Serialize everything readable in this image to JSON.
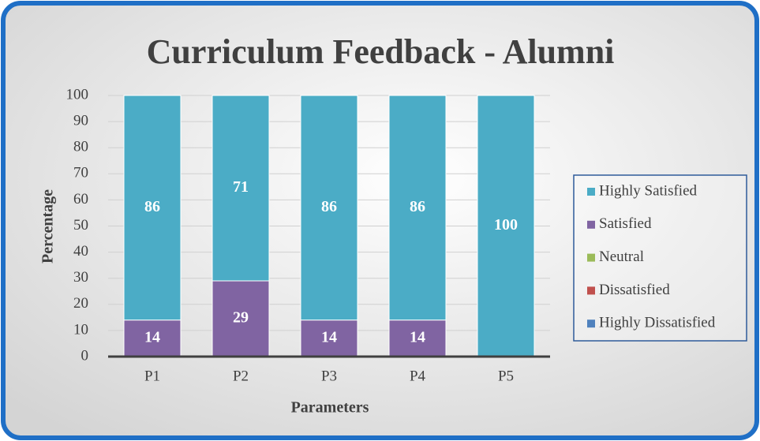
{
  "chart_data": {
    "type": "stacked_bar",
    "title": "Curriculum Feedback - Alumni",
    "x_label": "Parameters",
    "y_label": "Percentage",
    "categories": [
      "P1",
      "P2",
      "P3",
      "P4",
      "P5"
    ],
    "series": [
      {
        "name": "Highly Dissatisfied",
        "color": "#4f81bd",
        "values": [
          0,
          0,
          0,
          0,
          0
        ]
      },
      {
        "name": "Dissatisfied",
        "color": "#c0504d",
        "values": [
          0,
          0,
          0,
          0,
          0
        ]
      },
      {
        "name": "Neutral",
        "color": "#9bbb59",
        "values": [
          0,
          0,
          0,
          0,
          0
        ]
      },
      {
        "name": "Satisfied",
        "color": "#8064a2",
        "values": [
          14,
          29,
          14,
          14,
          0
        ]
      },
      {
        "name": "Highly Satisfied",
        "color": "#4bacc6",
        "values": [
          86,
          71,
          86,
          86,
          100
        ]
      }
    ],
    "ylim": [
      0,
      100
    ],
    "yticks": [
      0,
      10,
      20,
      30,
      40,
      50,
      60,
      70,
      80,
      90,
      100
    ],
    "grid": true,
    "legend": "right"
  }
}
